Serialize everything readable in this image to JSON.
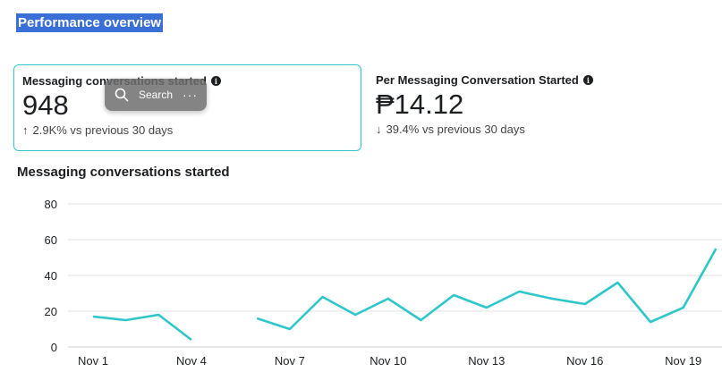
{
  "header": {
    "title": "Performance overview"
  },
  "cards": [
    {
      "label": "Messaging conversations started",
      "value": "948",
      "delta": "2.9K% vs previous 30 days",
      "direction": "up"
    },
    {
      "label": "Per Messaging Conversation Started",
      "value": "₱14.12",
      "delta": "39.4% vs previous 30 days",
      "direction": "down"
    }
  ],
  "search_popup": {
    "label": "Search",
    "more": "···"
  },
  "chart_data": {
    "type": "line",
    "title": "Messaging conversations started",
    "x": [
      "Nov 1",
      "Nov 2",
      "Nov 3",
      "Nov 4",
      "Nov 5",
      "Nov 6",
      "Nov 7",
      "Nov 8",
      "Nov 9",
      "Nov 10",
      "Nov 11",
      "Nov 12",
      "Nov 13",
      "Nov 14",
      "Nov 15",
      "Nov 16",
      "Nov 17",
      "Nov 18",
      "Nov 19",
      "Nov 20"
    ],
    "x_tick_labels": [
      "Nov 1",
      "Nov 4",
      "Nov 7",
      "Nov 10",
      "Nov 13",
      "Nov 16",
      "Nov 19"
    ],
    "series": [
      {
        "values": [
          17,
          15,
          18,
          4,
          null,
          16,
          10,
          28,
          18,
          27,
          15,
          29,
          22,
          31,
          27,
          24,
          36,
          14,
          22,
          55
        ],
        "color": "#2ec7c9"
      }
    ],
    "ylim": [
      0,
      80
    ],
    "yticks": [
      0,
      20,
      40,
      60,
      80
    ],
    "grid": true
  }
}
